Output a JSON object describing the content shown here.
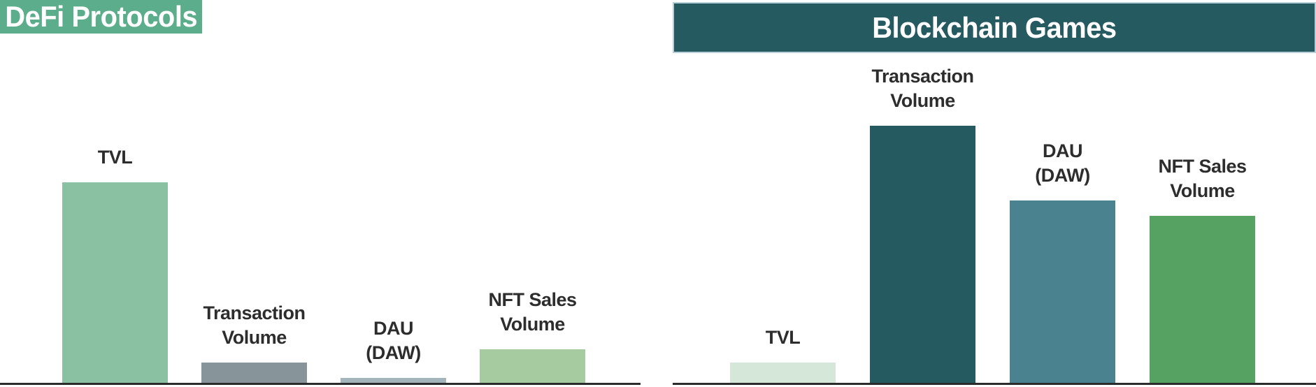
{
  "chart_data": [
    {
      "type": "bar",
      "title": "DeFi Protocols",
      "categories": [
        "TVL",
        "Transaction\nVolume",
        "DAU\n(DAW)",
        "NFT Sales\nVolume"
      ],
      "values": [
        78,
        8,
        2,
        13
      ],
      "value_scale": "relative units, max 100 (no y-axis ticks or value labels shown)",
      "bar_colors": [
        "#8bc1a3",
        "#87959b",
        "#a3b5bb",
        "#a6cba0"
      ],
      "header_color": "#5cad8b",
      "title_color": "#ffffff",
      "xlabel": "",
      "ylabel": "",
      "ylim": [
        0,
        100
      ],
      "grid": false,
      "legend": false,
      "axis": {
        "x_baseline": true,
        "y_axis_visible": false
      },
      "label_position": "above-bars"
    },
    {
      "type": "bar",
      "title": "Blockchain Games",
      "categories": [
        "TVL",
        "Transaction\nVolume",
        "DAU\n(DAW)",
        "NFT Sales\nVolume"
      ],
      "values": [
        8,
        100,
        71,
        65
      ],
      "value_scale": "relative units, max 100 (no y-axis ticks or value labels shown)",
      "bar_colors": [
        "#d5e7d9",
        "#265a61",
        "#4a8290",
        "#55a263"
      ],
      "header_color": "#265a61",
      "title_color": "#ffffff",
      "xlabel": "",
      "ylabel": "",
      "ylim": [
        0,
        100
      ],
      "grid": false,
      "legend": false,
      "axis": {
        "x_baseline": true,
        "y_axis_visible": false
      },
      "label_position": "above-bars"
    }
  ],
  "style": {
    "axis_line_color": "#2b2b2b",
    "label_text_color": "#2d2d2d",
    "right_panel_trim_color": "#b9cfd9",
    "background": "#ffffff"
  }
}
